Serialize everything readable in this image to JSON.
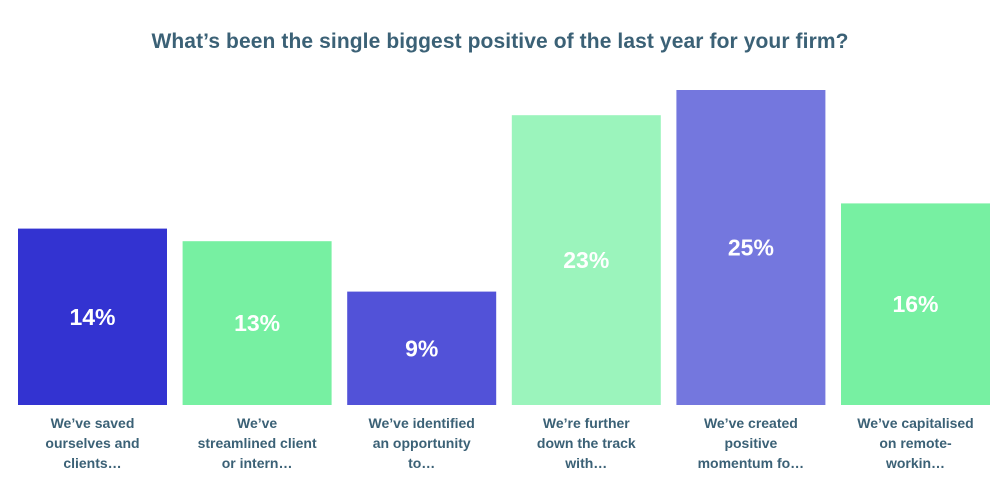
{
  "chart_data": {
    "type": "bar",
    "title": "What’s been the single biggest positive of the last year for your firm?",
    "categories": [
      "We’ve saved ourselves and clients…",
      "We’ve streamlined client or intern…",
      "We’ve identified an opportunity to…",
      "We’re further down the track with…",
      "We’ve created positive momentum fo…",
      "We’ve capitalised on remote-workin…"
    ],
    "values": [
      14,
      13,
      9,
      23,
      25,
      16
    ],
    "value_labels": [
      "14%",
      "13%",
      "9%",
      "23%",
      "25%",
      "16%"
    ],
    "colors": [
      "#3333d1",
      "#77f0a2",
      "#5252d8",
      "#9bf4bc",
      "#7477de",
      "#77f0a2"
    ],
    "ylim": [
      0,
      25
    ],
    "grid": false,
    "legend": "none"
  }
}
